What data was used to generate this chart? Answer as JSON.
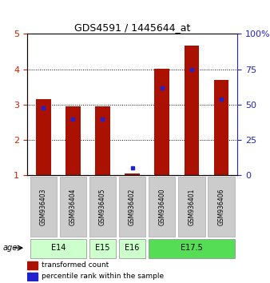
{
  "title": "GDS4591 / 1445644_at",
  "samples": [
    "GSM936403",
    "GSM936404",
    "GSM936405",
    "GSM936402",
    "GSM936400",
    "GSM936401",
    "GSM936406"
  ],
  "red_values": [
    3.15,
    2.95,
    2.95,
    1.05,
    4.02,
    4.68,
    3.7
  ],
  "blue_values": [
    2.9,
    2.6,
    2.6,
    1.22,
    3.48,
    4.0,
    3.15
  ],
  "ylim_left": [
    1,
    5
  ],
  "ylim_right": [
    0,
    100
  ],
  "yticks_left": [
    1,
    2,
    3,
    4,
    5
  ],
  "yticks_right": [
    0,
    25,
    50,
    75,
    100
  ],
  "bar_color": "#aa1100",
  "blue_color": "#2222cc",
  "background_color": "#ffffff",
  "legend_red_label": "transformed count",
  "legend_blue_label": "percentile rank within the sample",
  "age_label": "age",
  "bar_width": 0.5,
  "left_tick_color": "#cc2200",
  "right_tick_color": "#2222cc",
  "sample_box_color": "#cccccc",
  "age_groups": [
    {
      "label": "E14",
      "start": 0,
      "end": 1,
      "color": "#ccffcc"
    },
    {
      "label": "E15",
      "start": 2,
      "end": 2,
      "color": "#ccffcc"
    },
    {
      "label": "E16",
      "start": 3,
      "end": 3,
      "color": "#ccffcc"
    },
    {
      "label": "E17.5",
      "start": 4,
      "end": 6,
      "color": "#55dd55"
    }
  ]
}
